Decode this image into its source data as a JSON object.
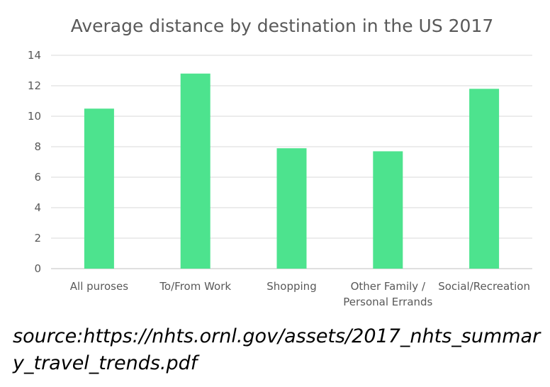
{
  "chart_data": {
    "type": "bar",
    "title": "Average distance by destination in the US 2017",
    "categories": [
      [
        "All puroses"
      ],
      [
        "To/From Work"
      ],
      [
        "Shopping"
      ],
      [
        "Other Family /",
        "Personal Errands"
      ],
      [
        "Social/Recreation"
      ]
    ],
    "values": [
      10.5,
      12.8,
      7.9,
      7.7,
      11.8
    ],
    "ylim": [
      0,
      14
    ],
    "yticks": [
      0,
      2,
      4,
      6,
      8,
      10,
      12,
      14
    ],
    "grid": true,
    "bar_color": "#4de38e",
    "grid_color": "#d9d9d9",
    "axis_color": "#bfbfbf"
  },
  "source_text": "source:https://nhts.ornl.gov/assets/2017_nhts_summary_travel_trends.pdf"
}
